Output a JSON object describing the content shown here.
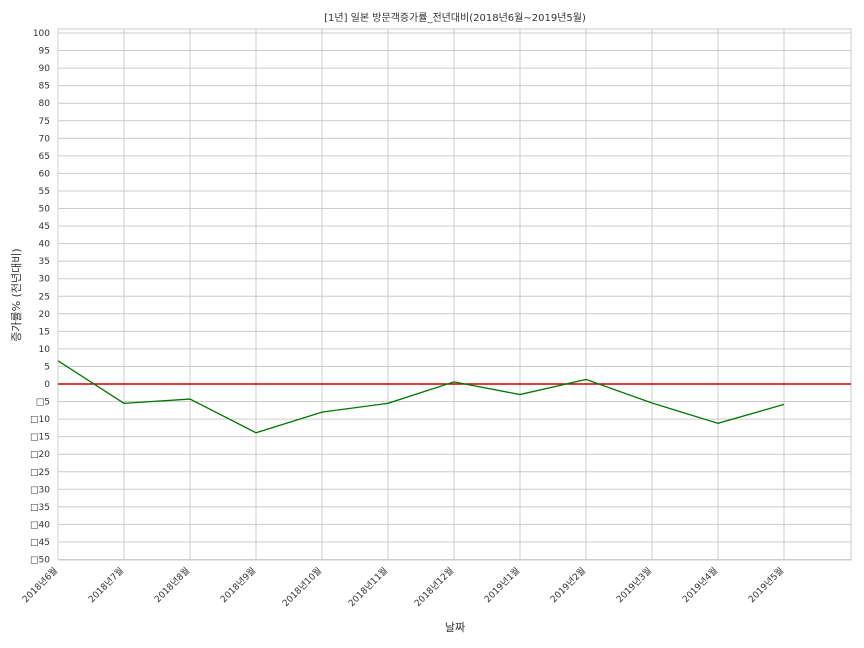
{
  "chart_data": {
    "type": "line",
    "title": "[1년] 일본 방문객증가률_전년대비(2018년6월~2019년5월)",
    "xlabel": "날짜",
    "ylabel": "증가률% (전년대비)",
    "categories": [
      "2018년6월",
      "2018년7월",
      "2018년8월",
      "2018년9월",
      "2018년10월",
      "2018년11월",
      "2018년12월",
      "2019년1월",
      "2019년2월",
      "2019년3월",
      "2019년4월",
      "2019년5월"
    ],
    "series": [
      {
        "values": [
          6.6,
          -5.5,
          -4.3,
          -13.9,
          -8.0,
          -5.5,
          0.6,
          -3.0,
          1.3,
          -5.4,
          -11.2,
          -5.8
        ]
      }
    ],
    "reference_line": {
      "y": 0,
      "color": "#cc0000"
    },
    "ylim": [
      -50,
      100
    ],
    "yticks": [
      100,
      95,
      90,
      85,
      80,
      75,
      70,
      65,
      60,
      55,
      50,
      45,
      40,
      35,
      30,
      25,
      20,
      15,
      10,
      5,
      0,
      -5,
      -10,
      -15,
      -20,
      -25,
      -30,
      -35,
      -40,
      -45,
      -50
    ],
    "ytick_labels": [
      "100",
      "95",
      "90",
      "85",
      "80",
      "75",
      "70",
      "65",
      "60",
      "55",
      "50",
      "45",
      "40",
      "35",
      "30",
      "25",
      "20",
      "15",
      "10",
      "5",
      "0",
      "□5",
      "□10",
      "□15",
      "□20",
      "□25",
      "□30",
      "□35",
      "□40",
      "□45",
      "□50"
    ],
    "line_color": "#007700",
    "grid": true
  }
}
